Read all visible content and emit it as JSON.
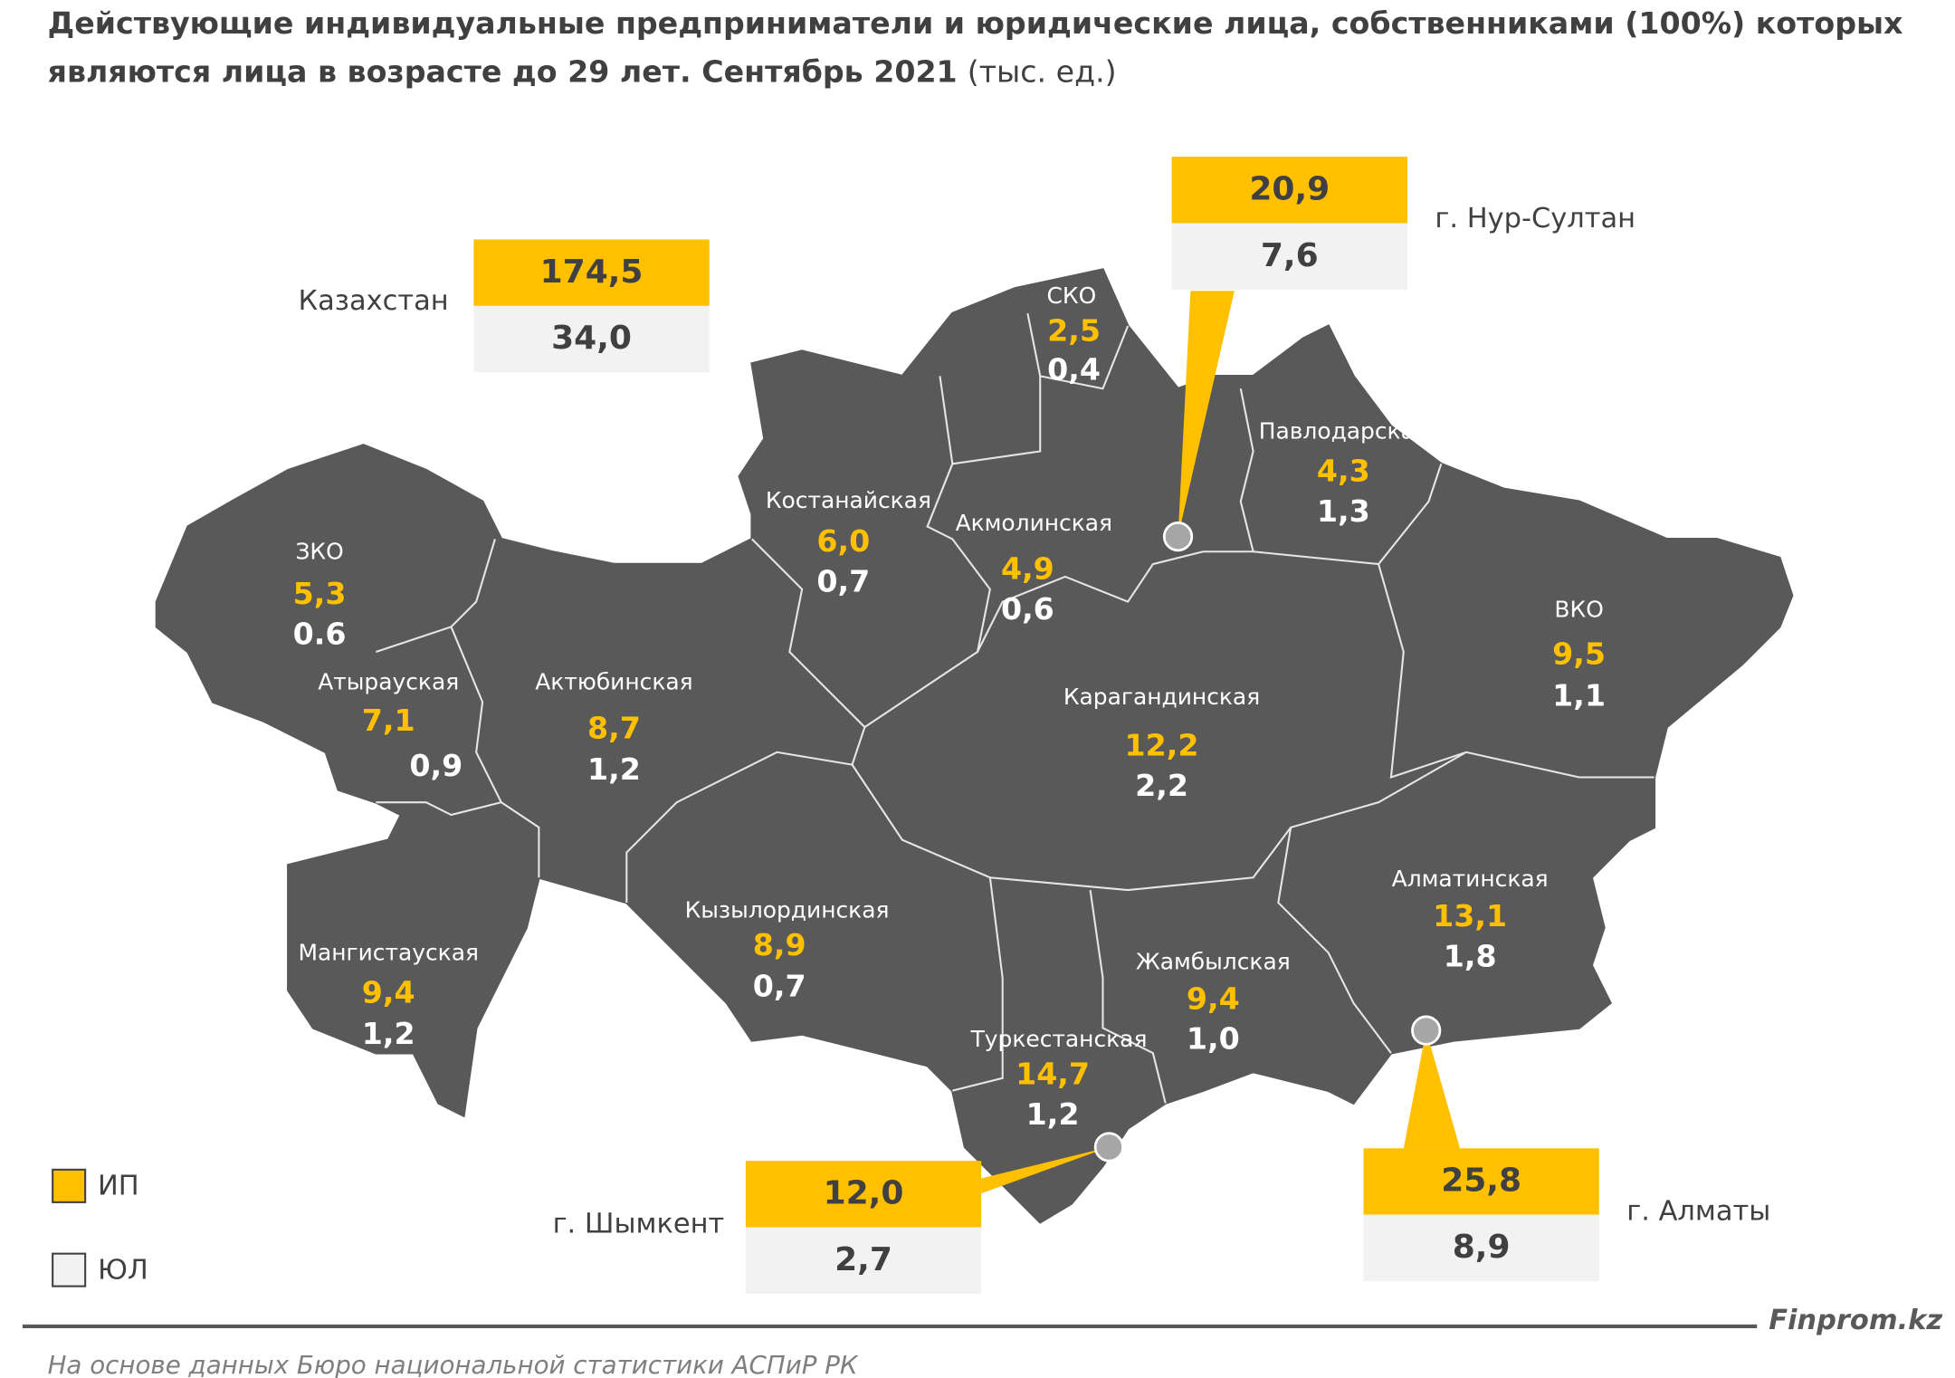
{
  "title": {
    "line1": "Действующие индивидуальные предприниматели и юридические лица, собственниками (100%) которых",
    "line2": "являются лица в возрасте до 29 лет. Сентябрь 2021",
    "unit": "(тыс. ед.)"
  },
  "total": {
    "name": "Казахстан",
    "ip": "174,5",
    "ul": "34,0"
  },
  "cities": [
    {
      "name": "г. Нур-Султан",
      "ip": "20,9",
      "ul": "7,6"
    },
    {
      "name": "г. Шымкент",
      "ip": "12,0",
      "ul": "2,7"
    },
    {
      "name": "г. Алматы",
      "ip": "25,8",
      "ul": "8,9"
    }
  ],
  "regions": [
    {
      "name": "ЗКО",
      "ip": "5,3",
      "ul": "0.6"
    },
    {
      "name": "Атырауская",
      "ip": "7,1",
      "ul": "0,9"
    },
    {
      "name": "Актюбинская",
      "ip": "8,7",
      "ul": "1,2"
    },
    {
      "name": "Костанайская",
      "ip": "6,0",
      "ul": "0,7"
    },
    {
      "name": "СКО",
      "ip": "2,5",
      "ul": "0,4"
    },
    {
      "name": "Акмолинская",
      "ip": "4,9",
      "ul": "0,6"
    },
    {
      "name": "Павлодарская",
      "ip": "4,3",
      "ul": "1,3"
    },
    {
      "name": "ВКО",
      "ip": "9,5",
      "ul": "1,1"
    },
    {
      "name": "Карагандинская",
      "ip": "12,2",
      "ul": "2,2"
    },
    {
      "name": "Мангистауская",
      "ip": "9,4",
      "ul": "1,2"
    },
    {
      "name": "Кызылординская",
      "ip": "8,9",
      "ul": "0,7"
    },
    {
      "name": "Жамбылская",
      "ip": "9,4",
      "ul": "1,0"
    },
    {
      "name": "Туркестанская",
      "ip": "14,7",
      "ul": "1,2"
    },
    {
      "name": "Алматинская",
      "ip": "13,1",
      "ul": "1,8"
    }
  ],
  "legend": {
    "ip": "ИП",
    "ul": "ЮЛ"
  },
  "brand": "Finprom.kz",
  "source": "На основе данных Бюро национальной статистики АСПиР РК"
}
